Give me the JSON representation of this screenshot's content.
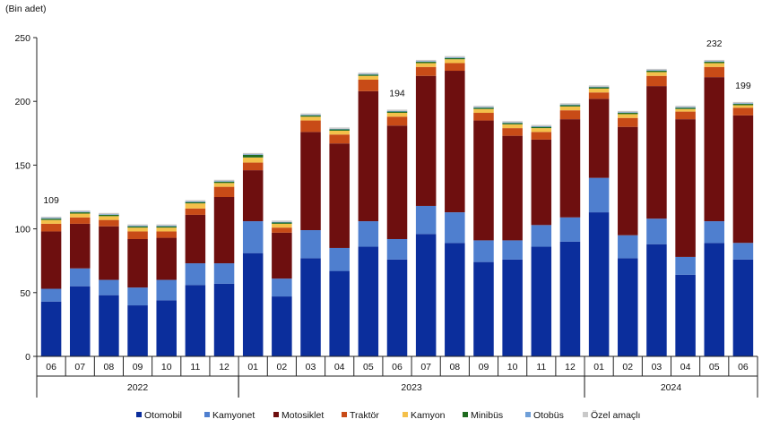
{
  "chart_data": {
    "type": "bar",
    "stacked": true,
    "unit_label": "(Bin adet)",
    "ylim": [
      0,
      250
    ],
    "yticks": [
      0,
      50,
      100,
      150,
      200,
      250
    ],
    "grid": false,
    "legend_position": "bottom",
    "categories": [
      "06",
      "07",
      "08",
      "09",
      "10",
      "11",
      "12",
      "01",
      "02",
      "03",
      "04",
      "05",
      "06",
      "07",
      "08",
      "09",
      "10",
      "11",
      "12",
      "01",
      "02",
      "03",
      "04",
      "05",
      "06"
    ],
    "years": [
      {
        "label": "2022",
        "from": 0,
        "to": 6
      },
      {
        "label": "2023",
        "from": 7,
        "to": 18
      },
      {
        "label": "2024",
        "from": 19,
        "to": 24
      }
    ],
    "data_labels": [
      {
        "index": 0,
        "text": "109"
      },
      {
        "index": 12,
        "text": "194"
      },
      {
        "index": 23,
        "text": "232"
      },
      {
        "index": 24,
        "text": "199"
      }
    ],
    "series": [
      {
        "name": "Otomobil",
        "color": "#0b2e9c",
        "values": [
          43,
          55,
          48,
          40,
          44,
          56,
          57,
          81,
          47,
          77,
          67,
          86,
          76,
          96,
          89,
          74,
          76,
          86,
          90,
          113,
          77,
          88,
          64,
          89,
          76
        ]
      },
      {
        "name": "Kamyonet",
        "color": "#4f7fcf",
        "values": [
          10,
          14,
          12,
          14,
          16,
          17,
          16,
          25,
          14,
          22,
          18,
          20,
          16,
          22,
          24,
          17,
          15,
          17,
          19,
          27,
          18,
          20,
          14,
          17,
          13
        ]
      },
      {
        "name": "Motosiklet",
        "color": "#6e0f0f",
        "values": [
          45,
          35,
          42,
          38,
          33,
          38,
          52,
          40,
          36,
          77,
          82,
          102,
          89,
          102,
          111,
          94,
          82,
          67,
          77,
          62,
          85,
          104,
          108,
          113,
          100
        ]
      },
      {
        "name": "Traktör",
        "color": "#c84b17",
        "values": [
          6,
          5,
          5,
          6,
          5,
          5,
          8,
          6,
          4,
          9,
          7,
          9,
          7,
          7,
          6,
          6,
          6,
          6,
          7,
          5,
          7,
          8,
          6,
          8,
          6
        ]
      },
      {
        "name": "Kamyon",
        "color": "#f4c04a",
        "values": [
          3,
          3,
          3,
          3,
          3,
          4,
          3,
          4,
          3,
          3,
          3,
          3,
          3,
          3,
          3,
          3,
          3,
          3,
          3,
          3,
          3,
          3,
          2,
          3,
          2
        ]
      },
      {
        "name": "Minibüs",
        "color": "#1f6b1f",
        "values": [
          1,
          1,
          1,
          1,
          1,
          1,
          1,
          2,
          1,
          1,
          1,
          1,
          1,
          1,
          1,
          1,
          1,
          1,
          1,
          1,
          1,
          1,
          1,
          1,
          1
        ]
      },
      {
        "name": "Otobüs",
        "color": "#6f9fd8",
        "values": [
          0.5,
          0.5,
          0.5,
          0.5,
          0.5,
          0.5,
          0.5,
          0.5,
          0.5,
          0.5,
          0.5,
          0.5,
          0.5,
          0.5,
          0.5,
          0.5,
          0.5,
          0.5,
          0.5,
          0.5,
          0.5,
          0.5,
          0.5,
          0.5,
          0.5
        ]
      },
      {
        "name": "Özel amaçlı",
        "color": "#c9c9c9",
        "values": [
          1,
          1,
          1,
          1,
          1,
          1,
          1,
          1,
          1,
          1,
          1,
          1,
          1,
          1,
          1,
          1,
          1,
          1,
          1,
          1,
          1,
          1,
          1,
          1,
          1
        ]
      }
    ]
  }
}
